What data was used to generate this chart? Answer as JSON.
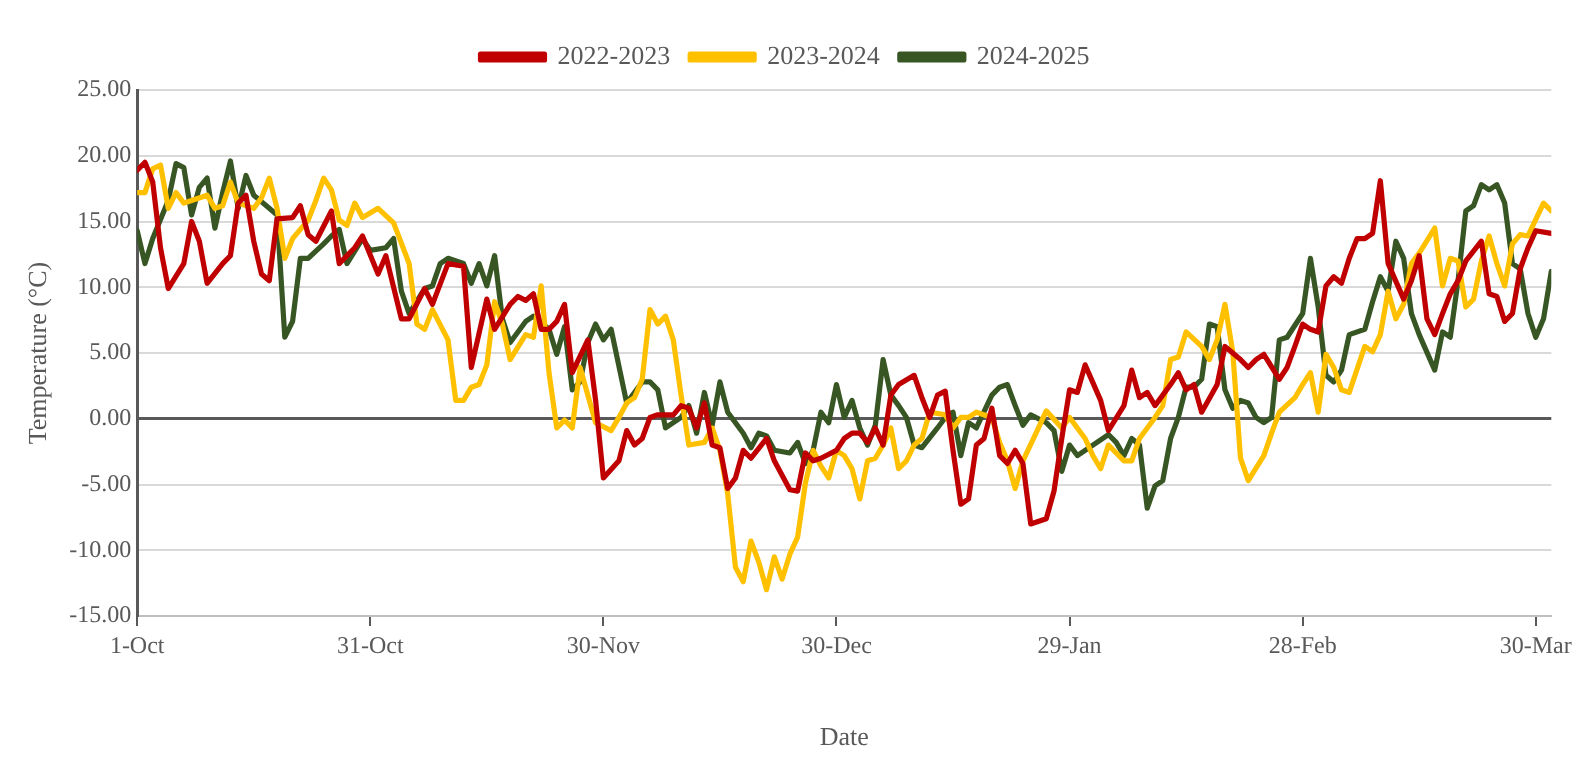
{
  "chart_data": {
    "type": "line",
    "xlabel": "Date",
    "ylabel": "Temperature (°C)",
    "xlim": [
      "2022-10-01",
      "2023-04-01"
    ],
    "xticks": [
      {
        "value": "2022-10-01",
        "label": "1-Oct"
      },
      {
        "value": "2022-10-31",
        "label": "31-Oct"
      },
      {
        "value": "2022-11-30",
        "label": "30-Nov"
      },
      {
        "value": "2022-12-30",
        "label": "30-Dec"
      },
      {
        "value": "2023-01-29",
        "label": "29-Jan"
      },
      {
        "value": "2023-02-28",
        "label": "28-Feb"
      },
      {
        "value": "2023-03-30",
        "label": "30-Mar"
      }
    ],
    "ylim": [
      -15,
      25
    ],
    "yticks": [
      {
        "value": -15,
        "label": "-15.00"
      },
      {
        "value": -10,
        "label": "-10.00"
      },
      {
        "value": -5,
        "label": "-5.00"
      },
      {
        "value": 0,
        "label": "0.00"
      },
      {
        "value": 5,
        "label": "5.00"
      },
      {
        "value": 10,
        "label": "10.00"
      },
      {
        "value": 15,
        "label": "15.00"
      },
      {
        "value": 20,
        "label": "20.00"
      },
      {
        "value": 25,
        "label": "25.00"
      }
    ],
    "grid": "y",
    "legend": "top",
    "marker": "none",
    "line_style": "solid",
    "series": [
      {
        "name": "2022-2023",
        "color": "#c00000",
        "x": [
          "2022-10-01",
          "2022-10-02",
          "2022-10-03",
          "2022-10-04",
          "2022-10-05",
          "2022-10-07",
          "2022-10-08",
          "2022-10-09",
          "2022-10-10",
          "2022-10-12",
          "2022-10-13",
          "2022-10-14",
          "2022-10-15",
          "2022-10-16",
          "2022-10-17",
          "2022-10-18",
          "2022-10-19",
          "2022-10-21",
          "2022-10-22",
          "2022-10-23",
          "2022-10-24",
          "2022-10-26",
          "2022-10-27",
          "2022-10-29",
          "2022-10-30",
          "2022-11-01",
          "2022-11-02",
          "2022-11-04",
          "2022-11-05",
          "2022-11-07",
          "2022-11-08",
          "2022-11-10",
          "2022-11-12",
          "2022-11-13",
          "2022-11-15",
          "2022-11-16",
          "2022-11-18",
          "2022-11-19",
          "2022-11-20",
          "2022-11-21",
          "2022-11-22",
          "2022-11-23",
          "2022-11-24",
          "2022-11-25",
          "2022-11-26",
          "2022-11-28",
          "2022-11-29",
          "2022-11-30",
          "2022-12-02",
          "2022-12-03",
          "2022-12-04",
          "2022-12-05",
          "2022-12-06",
          "2022-12-07",
          "2022-12-09",
          "2022-12-10",
          "2022-12-11",
          "2022-12-12",
          "2022-12-13",
          "2022-12-14",
          "2022-12-15",
          "2022-12-16",
          "2022-12-17",
          "2022-12-18",
          "2022-12-19",
          "2022-12-21",
          "2022-12-22",
          "2022-12-24",
          "2022-12-25",
          "2022-12-26",
          "2022-12-27",
          "2022-12-28",
          "2022-12-30",
          "2022-12-31",
          "2023-01-01",
          "2023-01-02",
          "2023-01-03",
          "2023-01-04",
          "2023-01-05",
          "2023-01-06",
          "2023-01-07",
          "2023-01-09",
          "2023-01-10",
          "2023-01-11",
          "2023-01-12",
          "2023-01-13",
          "2023-01-14",
          "2023-01-15",
          "2023-01-16",
          "2023-01-17",
          "2023-01-18",
          "2023-01-19",
          "2023-01-20",
          "2023-01-21",
          "2023-01-22",
          "2023-01-23",
          "2023-01-24",
          "2023-01-26",
          "2023-01-27",
          "2023-01-28",
          "2023-01-29",
          "2023-01-30",
          "2023-01-31",
          "2023-02-02",
          "2023-02-03",
          "2023-02-05",
          "2023-02-06",
          "2023-02-07",
          "2023-02-08",
          "2023-02-09",
          "2023-02-11",
          "2023-02-12",
          "2023-02-13",
          "2023-02-14",
          "2023-02-15",
          "2023-02-17",
          "2023-02-18",
          "2023-02-20",
          "2023-02-21",
          "2023-02-22",
          "2023-02-23",
          "2023-02-25",
          "2023-02-26",
          "2023-02-27",
          "2023-02-28",
          "2023-03-01",
          "2023-03-02",
          "2023-03-03",
          "2023-03-04",
          "2023-03-05",
          "2023-03-06",
          "2023-03-07",
          "2023-03-08",
          "2023-03-09",
          "2023-03-10",
          "2023-03-11",
          "2023-03-13",
          "2023-03-14",
          "2023-03-15",
          "2023-03-16",
          "2023-03-17",
          "2023-03-18",
          "2023-03-19",
          "2023-03-20",
          "2023-03-21",
          "2023-03-23",
          "2023-03-24",
          "2023-03-25",
          "2023-03-26",
          "2023-03-27",
          "2023-03-28",
          "2023-03-29",
          "2023-03-30",
          "2023-04-01"
        ],
        "values": [
          18.9,
          19.5,
          18,
          13,
          9.9,
          11.8,
          15,
          13.5,
          10.3,
          11.8,
          12.4,
          16.4,
          17,
          13.5,
          11,
          10.5,
          15.2,
          15.3,
          16.2,
          14,
          13.5,
          15.8,
          11.8,
          13,
          13.9,
          11,
          12.4,
          7.6,
          7.6,
          9.9,
          8.7,
          11.8,
          11.6,
          3.9,
          9.1,
          6.8,
          8.7,
          9.3,
          9,
          9.5,
          6.8,
          6.8,
          7.4,
          8.7,
          3.5,
          6,
          1.4,
          -4.5,
          -3.2,
          -0.9,
          -2,
          -1.5,
          0.1,
          0.3,
          0.3,
          1,
          0.8,
          -0.7,
          1.2,
          -2,
          -2.2,
          -5.3,
          -4.5,
          -2.4,
          -3,
          -1.5,
          -3.2,
          -5.4,
          -5.5,
          -2.6,
          -3.2,
          -3,
          -2.4,
          -1.5,
          -1.1,
          -1.1,
          -1.8,
          -0.7,
          -2,
          1.8,
          2.6,
          3.3,
          1.6,
          0.1,
          1.8,
          2.1,
          -2.4,
          -6.5,
          -6.1,
          -2,
          -1.5,
          0.8,
          -2.8,
          -3.4,
          -2.4,
          -3.4,
          -8,
          -7.6,
          -5.5,
          -1.5,
          2.2,
          2,
          4.1,
          1.4,
          -0.9,
          1,
          3.7,
          1.6,
          2,
          1,
          2.6,
          3.5,
          2.2,
          2.6,
          0.5,
          2.6,
          5.5,
          4.5,
          3.9,
          4.5,
          4.9,
          3,
          3.9,
          5.5,
          7.2,
          6.8,
          6.6,
          10.1,
          10.8,
          10.3,
          12.2,
          13.7,
          13.7,
          14.1,
          18.1,
          11.8,
          9.1,
          10.5,
          12.4,
          7.6,
          6.4,
          8,
          9.5,
          10.5,
          12,
          13.5,
          9.5,
          9.3,
          7.4,
          8,
          11.4,
          13,
          14.3,
          14.1
        ]
      },
      {
        "name": "2023-2024",
        "color": "#ffc000",
        "x": [
          "2022-10-01",
          "2022-10-02",
          "2022-10-03",
          "2022-10-04",
          "2022-10-05",
          "2022-10-06",
          "2022-10-07",
          "2022-10-08",
          "2022-10-10",
          "2022-10-11",
          "2022-10-12",
          "2022-10-13",
          "2022-10-14",
          "2022-10-16",
          "2022-10-17",
          "2022-10-18",
          "2022-10-19",
          "2022-10-20",
          "2022-10-21",
          "2022-10-23",
          "2022-10-24",
          "2022-10-25",
          "2022-10-26",
          "2022-10-27",
          "2022-10-28",
          "2022-10-29",
          "2022-10-30",
          "2022-11-01",
          "2022-11-03",
          "2022-11-05",
          "2022-11-06",
          "2022-11-07",
          "2022-11-08",
          "2022-11-10",
          "2022-11-11",
          "2022-11-12",
          "2022-11-13",
          "2022-11-14",
          "2022-11-15",
          "2022-11-16",
          "2022-11-17",
          "2022-11-18",
          "2022-11-20",
          "2022-11-21",
          "2022-11-22",
          "2022-11-23",
          "2022-11-24",
          "2022-11-25",
          "2022-11-26",
          "2022-11-27",
          "2022-11-29",
          "2022-12-01",
          "2022-12-02",
          "2022-12-03",
          "2022-12-04",
          "2022-12-05",
          "2022-12-06",
          "2022-12-07",
          "2022-12-08",
          "2022-12-09",
          "2022-12-10",
          "2022-12-11",
          "2022-12-13",
          "2022-12-14",
          "2022-12-15",
          "2022-12-16",
          "2022-12-17",
          "2022-12-18",
          "2022-12-19",
          "2022-12-20",
          "2022-12-21",
          "2022-12-22",
          "2022-12-23",
          "2022-12-24",
          "2022-12-25",
          "2022-12-26",
          "2022-12-27",
          "2022-12-28",
          "2022-12-29",
          "2022-12-30",
          "2022-12-31",
          "2023-01-01",
          "2023-01-02",
          "2023-01-03",
          "2023-01-04",
          "2023-01-05",
          "2023-01-06",
          "2023-01-07",
          "2023-01-08",
          "2023-01-09",
          "2023-01-10",
          "2023-01-11",
          "2023-01-13",
          "2023-01-14",
          "2023-01-15",
          "2023-01-16",
          "2023-01-17",
          "2023-01-19",
          "2023-01-20",
          "2023-01-21",
          "2023-01-22",
          "2023-01-23",
          "2023-01-25",
          "2023-01-26",
          "2023-01-28",
          "2023-01-29",
          "2023-01-31",
          "2023-02-01",
          "2023-02-02",
          "2023-02-03",
          "2023-02-05",
          "2023-02-06",
          "2023-02-07",
          "2023-02-08",
          "2023-02-09",
          "2023-02-10",
          "2023-02-11",
          "2023-02-12",
          "2023-02-13",
          "2023-02-15",
          "2023-02-16",
          "2023-02-17",
          "2023-02-18",
          "2023-02-19",
          "2023-02-20",
          "2023-02-21",
          "2023-02-23",
          "2023-02-24",
          "2023-02-25",
          "2023-02-27",
          "2023-02-28",
          "2023-03-01",
          "2023-03-02",
          "2023-03-03",
          "2023-03-04",
          "2023-03-05",
          "2023-03-06",
          "2023-03-08",
          "2023-03-09",
          "2023-03-10",
          "2023-03-11",
          "2023-03-12",
          "2023-03-13",
          "2023-03-14",
          "2023-03-15",
          "2023-03-17",
          "2023-03-18",
          "2023-03-19",
          "2023-03-20",
          "2023-03-21",
          "2023-03-22",
          "2023-03-23",
          "2023-03-24",
          "2023-03-25",
          "2023-03-26",
          "2023-03-27",
          "2023-03-28",
          "2023-03-29",
          "2023-03-31",
          "2023-04-01"
        ],
        "values": [
          17.2,
          17.2,
          19,
          19.3,
          16,
          17.2,
          16.4,
          16.6,
          17,
          16,
          16.2,
          18,
          16.4,
          16,
          16.8,
          18.3,
          16,
          12.2,
          13.7,
          15.1,
          16.6,
          18.3,
          17.4,
          15.1,
          14.7,
          16.4,
          15.3,
          16,
          14.9,
          11.8,
          7.2,
          6.8,
          8.3,
          6,
          1.4,
          1.4,
          2.4,
          2.6,
          4.1,
          8.9,
          7.2,
          4.5,
          6.4,
          6.2,
          10.1,
          3.5,
          -0.7,
          -0.1,
          -0.7,
          3.9,
          -0.3,
          -0.9,
          0.1,
          1.2,
          1.6,
          3,
          8.3,
          7.2,
          7.8,
          6,
          1.8,
          -2,
          -1.8,
          -0.7,
          -2.4,
          -5.7,
          -11.3,
          -12.4,
          -9.3,
          -10.9,
          -13,
          -10.5,
          -12.2,
          -10.3,
          -9,
          -4.9,
          -2.4,
          -3.6,
          -4.5,
          -2.4,
          -2.8,
          -3.8,
          -6.1,
          -3.2,
          -3,
          -2,
          -0.7,
          -3.8,
          -3.2,
          -2,
          -1.5,
          0.5,
          0.3,
          -0.7,
          0.1,
          0.1,
          0.5,
          0.1,
          -1.8,
          -3.2,
          -5.3,
          -3.2,
          -0.7,
          0.6,
          -0.7,
          0.1,
          -1.5,
          -2.8,
          -3.8,
          -2,
          -3.2,
          -3.2,
          -1.5,
          -0.7,
          0.1,
          1,
          4.5,
          4.7,
          6.6,
          5.5,
          4.5,
          6,
          8.7,
          5.1,
          -3,
          -4.7,
          -2.8,
          -1.1,
          0.5,
          1.6,
          2.6,
          3.5,
          0.5,
          4.9,
          3.9,
          2.2,
          2,
          5.5,
          5.1,
          6.4,
          9.7,
          7.6,
          8.7,
          11.8,
          12.6,
          14.5,
          10.1,
          12.2,
          12,
          8.5,
          9.1,
          12,
          13.9,
          11.8,
          10.1,
          13.3,
          14,
          13.9,
          16.4,
          15.8
        ]
      },
      {
        "name": "2024-2025",
        "color": "#375623",
        "x": [
          "2022-10-01",
          "2022-10-02",
          "2022-10-03",
          "2022-10-05",
          "2022-10-06",
          "2022-10-07",
          "2022-10-08",
          "2022-10-09",
          "2022-10-10",
          "2022-10-11",
          "2022-10-12",
          "2022-10-13",
          "2022-10-14",
          "2022-10-15",
          "2022-10-16",
          "2022-10-18",
          "2022-10-19",
          "2022-10-20",
          "2022-10-21",
          "2022-10-22",
          "2022-10-23",
          "2022-10-25",
          "2022-10-26",
          "2022-10-27",
          "2022-10-28",
          "2022-10-30",
          "2022-10-31",
          "2022-11-02",
          "2022-11-03",
          "2022-11-04",
          "2022-11-05",
          "2022-11-07",
          "2022-11-08",
          "2022-11-09",
          "2022-11-10",
          "2022-11-12",
          "2022-11-13",
          "2022-11-14",
          "2022-11-15",
          "2022-11-16",
          "2022-11-17",
          "2022-11-18",
          "2022-11-20",
          "2022-11-21",
          "2022-11-23",
          "2022-11-24",
          "2022-11-25",
          "2022-11-26",
          "2022-11-27",
          "2022-11-28",
          "2022-11-29",
          "2022-11-30",
          "2022-12-01",
          "2022-12-03",
          "2022-12-05",
          "2022-12-06",
          "2022-12-07",
          "2022-12-08",
          "2022-12-09",
          "2022-12-10",
          "2022-12-11",
          "2022-12-12",
          "2022-12-13",
          "2022-12-14",
          "2022-12-15",
          "2022-12-16",
          "2022-12-18",
          "2022-12-19",
          "2022-12-20",
          "2022-12-21",
          "2022-12-22",
          "2022-12-24",
          "2022-12-25",
          "2022-12-26",
          "2022-12-27",
          "2022-12-28",
          "2022-12-29",
          "2022-12-30",
          "2022-12-31",
          "2023-01-01",
          "2023-01-02",
          "2023-01-03",
          "2023-01-04",
          "2023-01-05",
          "2023-01-06",
          "2023-01-07",
          "2023-01-08",
          "2023-01-09",
          "2023-01-10",
          "2023-01-12",
          "2023-01-13",
          "2023-01-14",
          "2023-01-15",
          "2023-01-16",
          "2023-01-17",
          "2023-01-19",
          "2023-01-20",
          "2023-01-21",
          "2023-01-22",
          "2023-01-23",
          "2023-01-24",
          "2023-01-26",
          "2023-01-27",
          "2023-01-28",
          "2023-01-29",
          "2023-01-30",
          "2023-02-01",
          "2023-02-03",
          "2023-02-04",
          "2023-02-05",
          "2023-02-06",
          "2023-02-07",
          "2023-02-08",
          "2023-02-09",
          "2023-02-10",
          "2023-02-11",
          "2023-02-12",
          "2023-02-13",
          "2023-02-14",
          "2023-02-15",
          "2023-02-16",
          "2023-02-17",
          "2023-02-18",
          "2023-02-19",
          "2023-02-20",
          "2023-02-21",
          "2023-02-22",
          "2023-02-23",
          "2023-02-24",
          "2023-02-25",
          "2023-02-26",
          "2023-02-28",
          "2023-03-01",
          "2023-03-02",
          "2023-03-03",
          "2023-03-04",
          "2023-03-05",
          "2023-03-06",
          "2023-03-08",
          "2023-03-09",
          "2023-03-10",
          "2023-03-11",
          "2023-03-12",
          "2023-03-13",
          "2023-03-14",
          "2023-03-15",
          "2023-03-17",
          "2023-03-18",
          "2023-03-19",
          "2023-03-20",
          "2023-03-21",
          "2023-03-22",
          "2023-03-23",
          "2023-03-24",
          "2023-03-25",
          "2023-03-26",
          "2023-03-27",
          "2023-03-28",
          "2023-03-29",
          "2023-03-30",
          "2023-03-31",
          "2023-04-01"
        ],
        "values": [
          14.3,
          11.8,
          13.7,
          16.6,
          19.4,
          19.1,
          15.5,
          17.6,
          18.3,
          14.5,
          17.2,
          19.6,
          16,
          18.5,
          17,
          16,
          15.5,
          6.2,
          7.4,
          12.2,
          12.2,
          13.3,
          13.9,
          14.4,
          11.8,
          13.7,
          12.8,
          13,
          13.7,
          9.7,
          8,
          9.9,
          10.1,
          11.8,
          12.2,
          11.8,
          10.3,
          11.8,
          10.1,
          12.4,
          7.6,
          5.8,
          7.4,
          7.8,
          6.8,
          4.9,
          7,
          2.2,
          2.8,
          5.8,
          7.2,
          6,
          6.8,
          1.2,
          2.8,
          2.8,
          2.2,
          -0.7,
          -0.3,
          0.1,
          1,
          -1.1,
          2,
          -0.5,
          2.8,
          0.5,
          -1.1,
          -2.2,
          -1.1,
          -1.3,
          -2.4,
          -2.6,
          -1.8,
          -3.4,
          -2.4,
          0.5,
          -0.3,
          2.6,
          0.1,
          1.4,
          -0.7,
          -2,
          -0.5,
          4.5,
          1.8,
          1,
          0.1,
          -2,
          -2.2,
          -0.7,
          0.1,
          0.5,
          -2.8,
          -0.3,
          -0.7,
          1.8,
          2.4,
          2.6,
          1,
          -0.5,
          0.3,
          -0.3,
          -0.9,
          -4,
          -2,
          -2.8,
          -2,
          -1.2,
          -1.8,
          -2.8,
          -1.5,
          -2,
          -6.8,
          -5.1,
          -4.7,
          -1.5,
          0.1,
          2.4,
          2.4,
          3,
          7.2,
          7,
          2.2,
          0.8,
          1.4,
          1.2,
          0.1,
          -0.3,
          0.1,
          6,
          6.2,
          8,
          12.2,
          8.5,
          3.3,
          2.8,
          3.7,
          6.4,
          6.8,
          8.9,
          10.8,
          9.7,
          13.5,
          12.2,
          8,
          6.4,
          3.7,
          6.6,
          6.2,
          10.5,
          15.8,
          16.2,
          17.8,
          17.4,
          17.8,
          16.4,
          11.8,
          11.4,
          8,
          6.2,
          7.6,
          11.2
        ]
      }
    ]
  }
}
